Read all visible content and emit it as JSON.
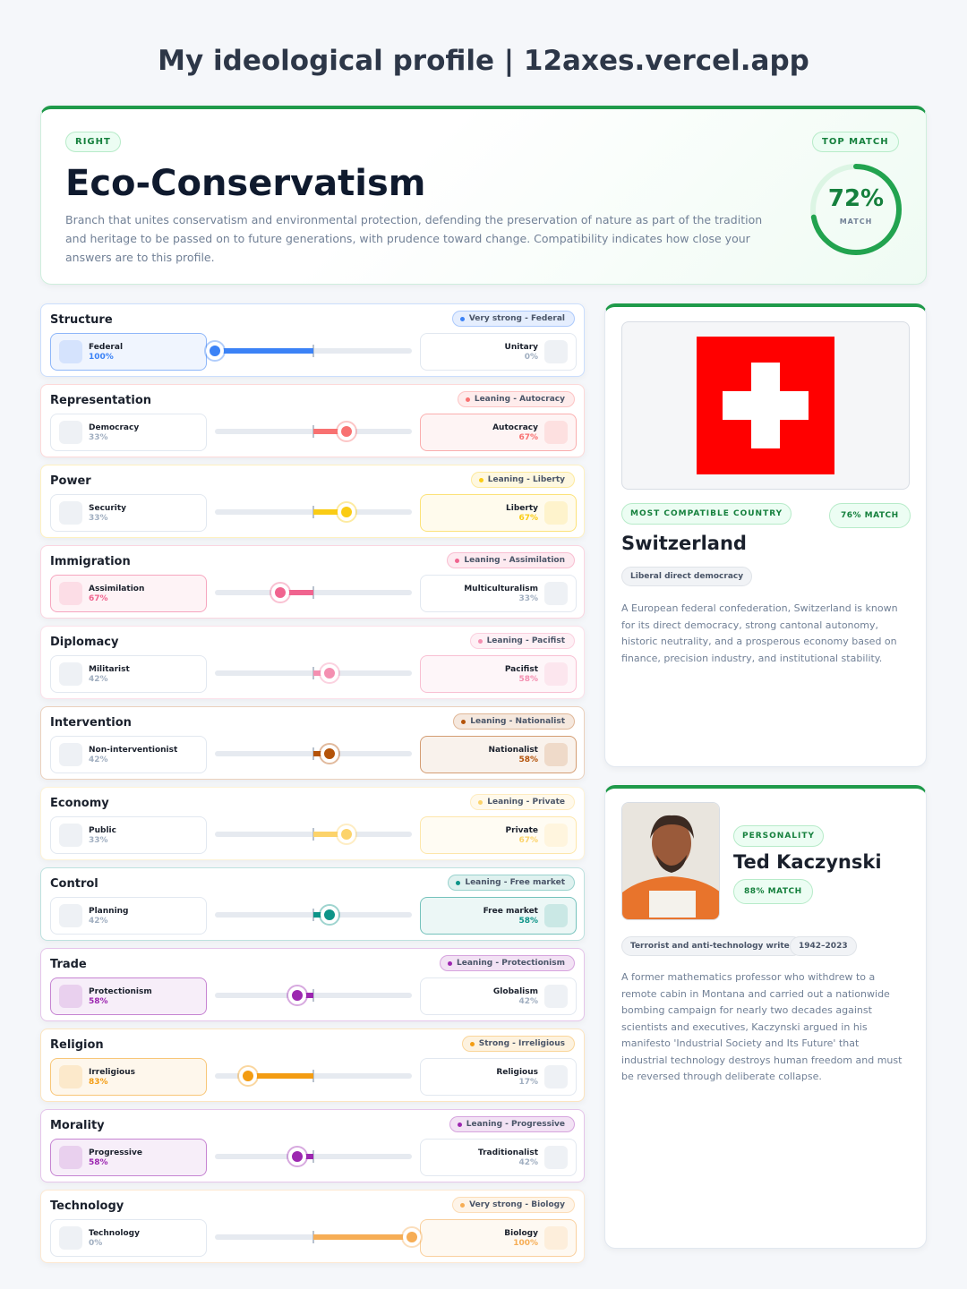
{
  "header": {
    "title": "My ideological profile | 12axes.vercel.app"
  },
  "profile": {
    "side": "RIGHT",
    "name": "Eco-Conservatism",
    "description": "Branch that unites conservatism and environmental protection, defending the preservation of nature as part of the tradition and heritage to be passed on to future generations, with prudence toward change. Compatibility indicates how close your answers are to this profile.",
    "top_match": "TOP MATCH",
    "match": {
      "value": 72,
      "label": "72%"
    },
    "match_caption": "MATCH"
  },
  "axes": [
    {
      "name": "Structure",
      "badge": "Very strong - Federal",
      "color": "#3b82f6",
      "left": {
        "label": "Federal",
        "value": 100,
        "value_label": "100%"
      },
      "right": {
        "label": "Unitary",
        "value": 0,
        "value_label": "0%"
      }
    },
    {
      "name": "Representation",
      "badge": "Leaning - Autocracy",
      "color": "#f87171",
      "left": {
        "label": "Democracy",
        "value": 33,
        "value_label": "33%"
      },
      "right": {
        "label": "Autocracy",
        "value": 67,
        "value_label": "67%"
      }
    },
    {
      "name": "Power",
      "badge": "Leaning - Liberty",
      "color": "#facc15",
      "left": {
        "label": "Security",
        "value": 33,
        "value_label": "33%"
      },
      "right": {
        "label": "Liberty",
        "value": 67,
        "value_label": "67%"
      }
    },
    {
      "name": "Immigration",
      "badge": "Leaning - Assimilation",
      "color": "#f0648f",
      "left": {
        "label": "Assimilation",
        "value": 67,
        "value_label": "67%"
      },
      "right": {
        "label": "Multiculturalism",
        "value": 33,
        "value_label": "33%"
      }
    },
    {
      "name": "Diplomacy",
      "badge": "Leaning - Pacifist",
      "color": "#f48fb1",
      "left": {
        "label": "Militarist",
        "value": 42,
        "value_label": "42%"
      },
      "right": {
        "label": "Pacifist",
        "value": 58,
        "value_label": "58%"
      }
    },
    {
      "name": "Intervention",
      "badge": "Leaning - Nationalist",
      "color": "#b45309",
      "left": {
        "label": "Non-interventionist",
        "value": 42,
        "value_label": "42%"
      },
      "right": {
        "label": "Nationalist",
        "value": 58,
        "value_label": "58%"
      }
    },
    {
      "name": "Economy",
      "badge": "Leaning - Private",
      "color": "#fcd36a",
      "left": {
        "label": "Public",
        "value": 33,
        "value_label": "33%"
      },
      "right": {
        "label": "Private",
        "value": 67,
        "value_label": "67%"
      }
    },
    {
      "name": "Control",
      "badge": "Leaning - Free market",
      "color": "#0d9488",
      "left": {
        "label": "Planning",
        "value": 42,
        "value_label": "42%"
      },
      "right": {
        "label": "Free market",
        "value": 58,
        "value_label": "58%"
      }
    },
    {
      "name": "Trade",
      "badge": "Leaning - Protectionism",
      "color": "#9c27b0",
      "left": {
        "label": "Protectionism",
        "value": 58,
        "value_label": "58%"
      },
      "right": {
        "label": "Globalism",
        "value": 42,
        "value_label": "42%"
      }
    },
    {
      "name": "Religion",
      "badge": "Strong - Irreligious",
      "color": "#f39c12",
      "left": {
        "label": "Irreligious",
        "value": 83,
        "value_label": "83%"
      },
      "right": {
        "label": "Religious",
        "value": 17,
        "value_label": "17%"
      }
    },
    {
      "name": "Morality",
      "badge": "Leaning - Progressive",
      "color": "#9c27b0",
      "left": {
        "label": "Progressive",
        "value": 58,
        "value_label": "58%"
      },
      "right": {
        "label": "Traditionalist",
        "value": 42,
        "value_label": "42%"
      }
    },
    {
      "name": "Technology",
      "badge": "Very strong - Biology",
      "color": "#f6ad55",
      "left": {
        "label": "Technology",
        "value": 0,
        "value_label": "0%"
      },
      "right": {
        "label": "Biology",
        "value": 100,
        "value_label": "100%"
      }
    }
  ],
  "country": {
    "heading": "MOST COMPATIBLE COUNTRY",
    "match": "76% MATCH",
    "name": "Switzerland",
    "tag": "Liberal direct democracy",
    "description": "A European federal confederation, Switzerland is known for its direct democracy, strong cantonal autonomy, historic neutrality, and a prosperous economy based on finance, precision industry, and institutional stability."
  },
  "personality": {
    "heading": "PERSONALITY",
    "name": "Ted Kaczynski",
    "match": "88% MATCH",
    "tags": [
      "Terrorist and anti-technology writer",
      "1942–2023"
    ],
    "description": "A former mathematics professor who withdrew to a remote cabin in Montana and carried out a nationwide bombing campaign for nearly two decades against scientists and executives, Kaczynski argued in his manifesto 'Industrial Society and Its Future' that industrial technology destroys human freedom and must be reversed through deliberate collapse."
  }
}
